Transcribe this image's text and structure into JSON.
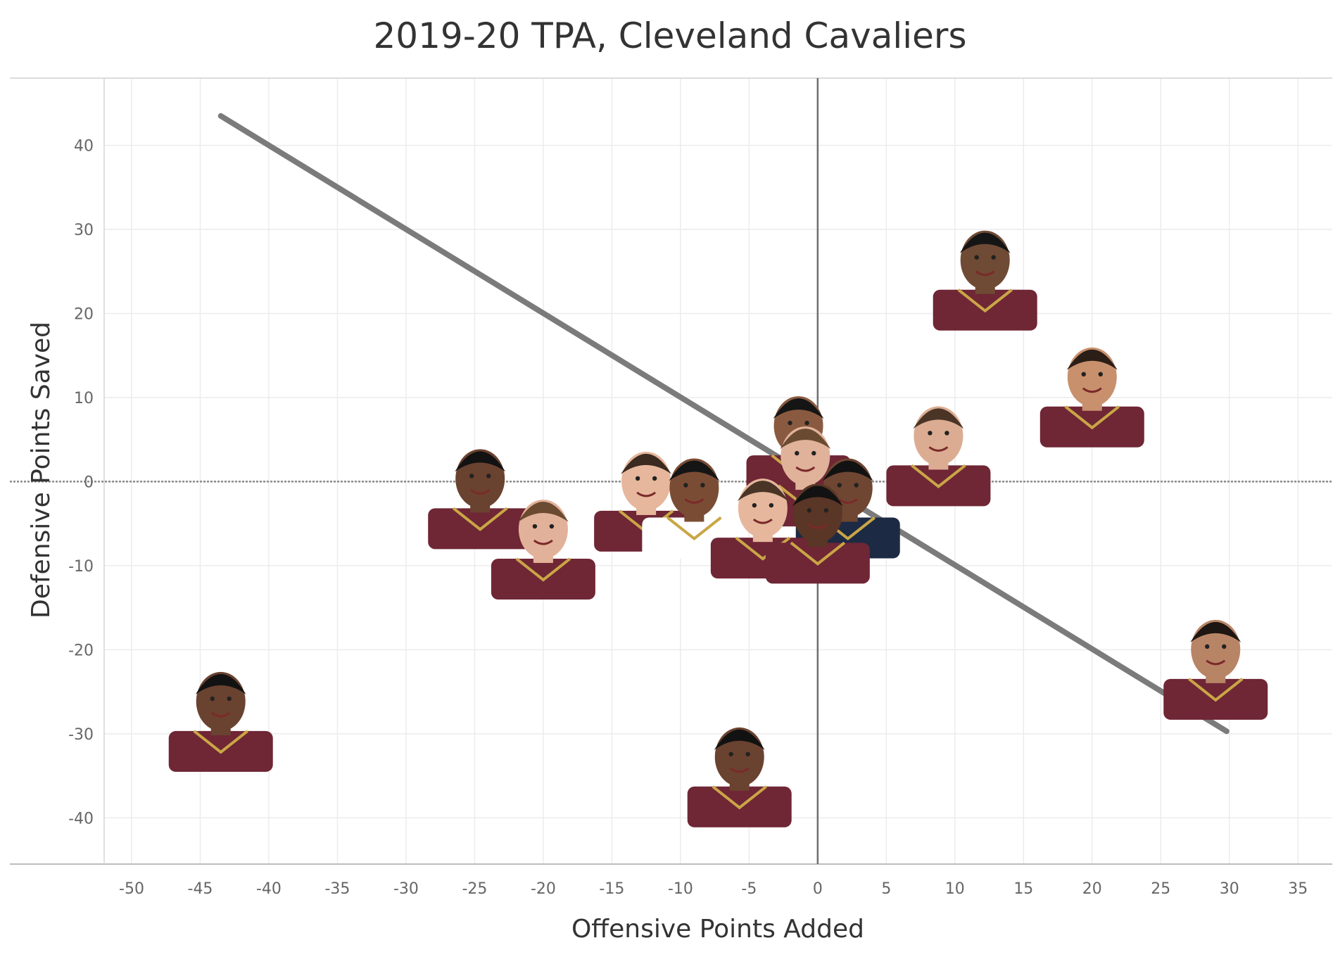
{
  "chart_data": {
    "type": "scatter",
    "title": "2019-20 TPA, Cleveland Cavaliers",
    "xlabel": "Offensive Points Added",
    "ylabel": "Defensive Points Saved",
    "xlim": [
      -52,
      37.5
    ],
    "ylim": [
      -45.5,
      48
    ],
    "x_ticks": [
      -50,
      -45,
      -40,
      -35,
      -30,
      -25,
      -20,
      -15,
      -10,
      -5,
      0,
      5,
      10,
      15,
      20,
      25,
      30,
      35
    ],
    "y_ticks": [
      -40,
      -30,
      -20,
      -10,
      0,
      10,
      20,
      30,
      40
    ],
    "grid": true,
    "reference_lines": {
      "x": 0,
      "y": 0
    },
    "trend_line": {
      "x": [
        -43.5,
        29.8
      ],
      "y": [
        43.5,
        -29.7
      ]
    },
    "points": [
      {
        "x": 12.2,
        "y": 24.5,
        "skin": "#6f4a34",
        "hair": "#151515",
        "jersey": "#6f2635"
      },
      {
        "x": 20.0,
        "y": 10.6,
        "skin": "#c8906c",
        "hair": "#2a1e17",
        "jersey": "#6f2635"
      },
      {
        "x": 8.8,
        "y": 3.6,
        "skin": "#dcac92",
        "hair": "#4a3426",
        "jersey": "#6f2635"
      },
      {
        "x": 29.0,
        "y": -21.8,
        "skin": "#b88466",
        "hair": "#1d1612",
        "jersey": "#6f2635"
      },
      {
        "x": -24.6,
        "y": -1.5,
        "skin": "#6a4230",
        "hair": "#121212",
        "jersey": "#6f2635"
      },
      {
        "x": -20.0,
        "y": -7.5,
        "skin": "#e2b199",
        "hair": "#6b4a32",
        "jersey": "#6f2635"
      },
      {
        "x": -12.5,
        "y": -1.8,
        "skin": "#e6b79c",
        "hair": "#3a2a20",
        "jersey": "#6f2635"
      },
      {
        "x": -9.0,
        "y": -2.6,
        "skin": "#7a4c34",
        "hair": "#151515",
        "jersey": "#ffffff"
      },
      {
        "x": -1.4,
        "y": 4.8,
        "skin": "#8a5a40",
        "hair": "#151515",
        "jersey": "#6f2635"
      },
      {
        "x": -0.9,
        "y": 1.2,
        "skin": "#e0b29a",
        "hair": "#6b4a32",
        "jersey": "#6f2635"
      },
      {
        "x": 2.2,
        "y": -2.6,
        "skin": "#6f4632",
        "hair": "#121212",
        "jersey": "#1d2a44"
      },
      {
        "x": -4.0,
        "y": -5.0,
        "skin": "#e6b79c",
        "hair": "#4a3426",
        "jersey": "#6f2635"
      },
      {
        "x": 0.0,
        "y": -5.6,
        "skin": "#5a3626",
        "hair": "#121212",
        "jersey": "#6f2635"
      },
      {
        "x": -43.5,
        "y": -28.0,
        "skin": "#6a4230",
        "hair": "#121212",
        "jersey": "#6f2635"
      },
      {
        "x": -5.7,
        "y": -34.6,
        "skin": "#6a4230",
        "hair": "#121212",
        "jersey": "#6f2635"
      }
    ]
  }
}
